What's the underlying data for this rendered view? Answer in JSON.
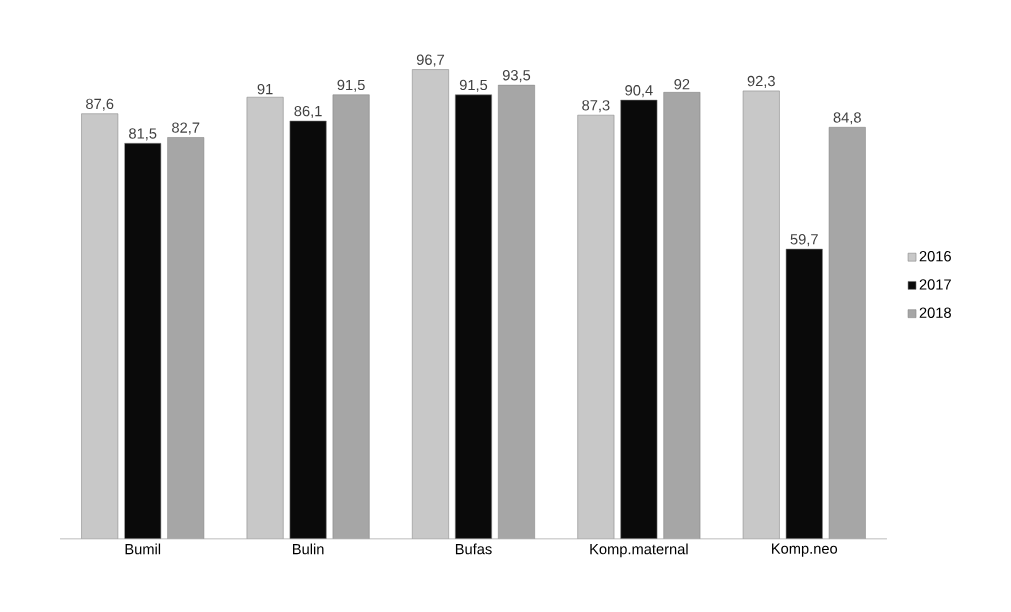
{
  "chart_data": {
    "type": "bar",
    "categories": [
      "Bumil",
      "Bulin",
      "Bufas",
      "Komp.maternal",
      "Komp.neo"
    ],
    "series": [
      {
        "name": "2016",
        "color": "#c8c8c8",
        "values": [
          87.6,
          91,
          96.7,
          87.3,
          92.3
        ],
        "value_labels": [
          "87,6",
          "91",
          "96,7",
          "87,3",
          "92,3"
        ]
      },
      {
        "name": "2017",
        "color": "#0a0a0a",
        "values": [
          81.5,
          86.1,
          91.5,
          90.4,
          59.7
        ],
        "value_labels": [
          "81,5",
          "86,1",
          "91,5",
          "90,4",
          "59,7"
        ]
      },
      {
        "name": "2018",
        "color": "#a6a6a6",
        "values": [
          82.7,
          91.5,
          93.5,
          92,
          84.8
        ],
        "value_labels": [
          "82,7",
          "91,5",
          "93,5",
          "92",
          "84,8"
        ]
      }
    ],
    "tick_labels": "x",
    "legend": "right"
  }
}
